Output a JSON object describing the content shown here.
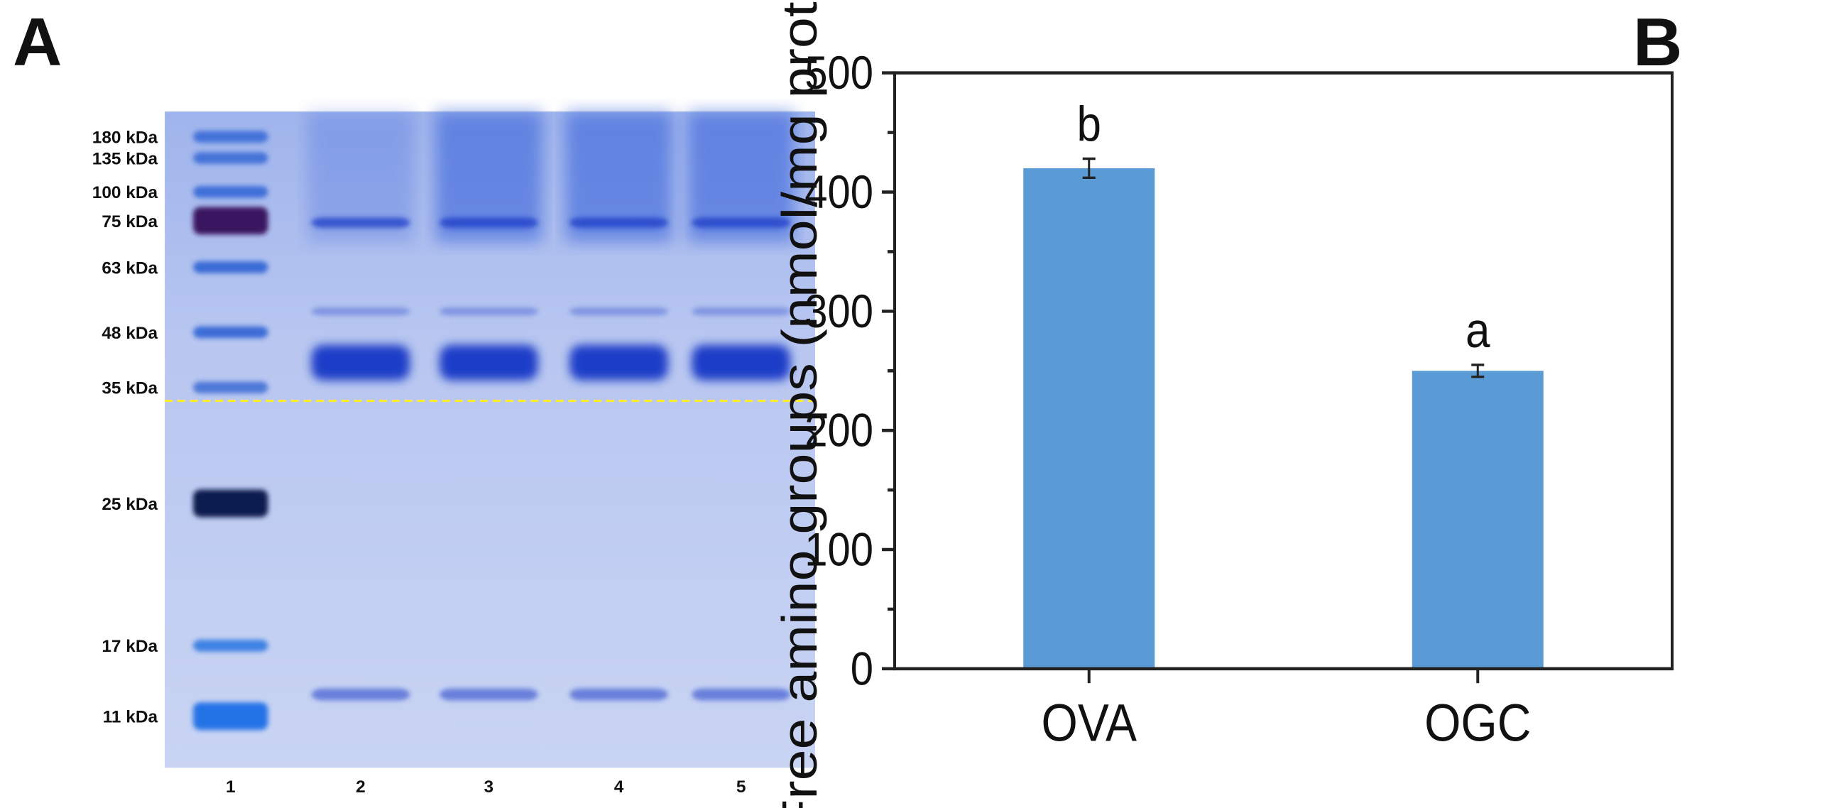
{
  "panels": {
    "a_label": "A",
    "b_label": "B"
  },
  "gel": {
    "markers": [
      {
        "label": "180 kDa"
      },
      {
        "label": "135 kDa"
      },
      {
        "label": "100 kDa"
      },
      {
        "label": "75 kDa"
      },
      {
        "label": "63 kDa"
      },
      {
        "label": "48 kDa"
      },
      {
        "label": "35 kDa"
      },
      {
        "label": "25 kDa"
      },
      {
        "label": "17 kDa"
      },
      {
        "label": "11 kDa"
      }
    ],
    "lanes": [
      "1",
      "2",
      "3",
      "4",
      "5"
    ],
    "colors": {
      "background": "#b9c6ee",
      "band": "#1e3ec8",
      "marker_band": "#1a52c8",
      "dashed_line": "#ffee22"
    }
  },
  "chart_data": {
    "type": "bar",
    "categories": [
      "OVA",
      "OGC"
    ],
    "values": [
      420,
      250
    ],
    "errors": [
      8,
      5
    ],
    "significance": [
      "b",
      "a"
    ],
    "ylabel": "Free amino groups (nmol/mg protein)",
    "xlabel": "",
    "ylim": [
      0,
      500
    ],
    "yticks": [
      0,
      100,
      200,
      300,
      400,
      500
    ],
    "grid": false,
    "bar_color": "#5b9bd5"
  }
}
